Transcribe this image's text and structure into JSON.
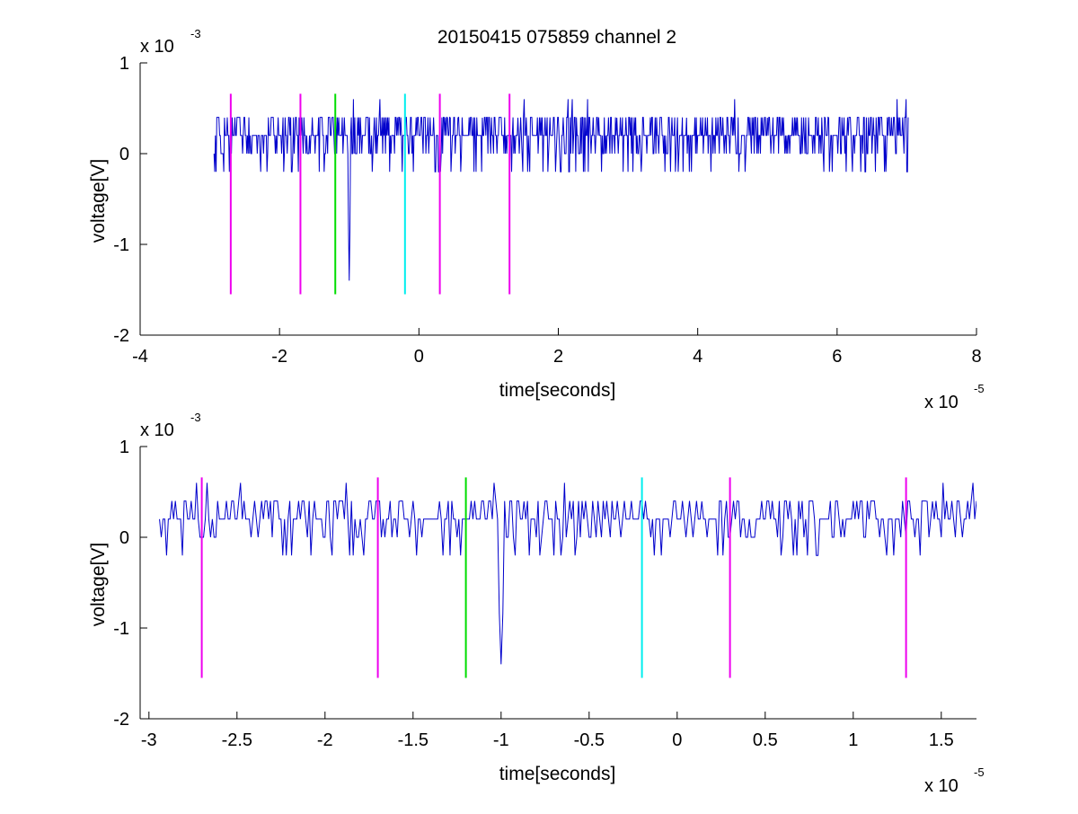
{
  "title": "20150415 075859 channel 2",
  "colors": {
    "signal": "#0000cc",
    "magenta": "#ee00ee",
    "green": "#00dd00",
    "cyan": "#00eeee"
  },
  "chart_data": [
    {
      "type": "line",
      "panel": "top",
      "xlabel": "time[seconds]",
      "ylabel": "voltage[V]",
      "x_exponent": "x 10",
      "x_exponent_power": "-5",
      "y_exponent": "x 10",
      "y_exponent_power": "-3",
      "xlim": [
        -4e-05,
        8e-05
      ],
      "ylim": [
        -0.002,
        0.001
      ],
      "xticks": [
        -4e-05,
        -2e-05,
        0,
        2e-05,
        4e-05,
        6e-05,
        8e-05
      ],
      "xtick_labels": [
        "-4",
        "-2",
        "0",
        "2",
        "4",
        "6",
        "8"
      ],
      "yticks": [
        -0.002,
        -0.001,
        0,
        0.001
      ],
      "ytick_labels": [
        "-2",
        "-1",
        "0",
        "1"
      ],
      "grid": false,
      "series": [
        {
          "color": "#0000cc",
          "x_range": [
            -2.94e-05,
            7.02e-05
          ],
          "baseline": 0.0002,
          "noise_levels": [
            -0.0002,
            0,
            0.0002,
            0.0004,
            0.0006
          ],
          "spikes": [
            {
              "x": -1e-05,
              "y": -0.0014
            }
          ]
        }
      ],
      "markers": [
        {
          "x": -2.7e-05,
          "color": "#ee00ee",
          "y_range": [
            -0.00155,
            0.00066
          ]
        },
        {
          "x": -1.7e-05,
          "color": "#ee00ee",
          "y_range": [
            -0.00155,
            0.00066
          ]
        },
        {
          "x": -1.2e-05,
          "color": "#00dd00",
          "y_range": [
            -0.00155,
            0.00066
          ]
        },
        {
          "x": -2e-06,
          "color": "#00eeee",
          "y_range": [
            -0.00155,
            0.00066
          ]
        },
        {
          "x": 3e-06,
          "color": "#ee00ee",
          "y_range": [
            -0.00155,
            0.00066
          ]
        },
        {
          "x": 1.3e-05,
          "color": "#ee00ee",
          "y_range": [
            -0.00155,
            0.00066
          ]
        }
      ]
    },
    {
      "type": "line",
      "panel": "bottom",
      "xlabel": "time[seconds]",
      "ylabel": "voltage[V]",
      "x_exponent": "x 10",
      "x_exponent_power": "-5",
      "y_exponent": "x 10",
      "y_exponent_power": "-3",
      "xlim": [
        -3.05e-05,
        1.7e-05
      ],
      "ylim": [
        -0.002,
        0.001
      ],
      "xticks": [
        -3e-05,
        -2.5e-05,
        -2e-05,
        -1.5e-05,
        -1e-05,
        -5e-06,
        0,
        5e-06,
        1e-05,
        1.5e-05
      ],
      "xtick_labels": [
        "-3",
        "-2.5",
        "-2",
        "-1.5",
        "-1",
        "-0.5",
        "0",
        "0.5",
        "1",
        "1.5"
      ],
      "yticks": [
        -0.002,
        -0.001,
        0,
        0.001
      ],
      "ytick_labels": [
        "-2",
        "-1",
        "0",
        "1"
      ],
      "grid": false,
      "series": [
        {
          "color": "#0000cc",
          "x_range": [
            -2.94e-05,
            1.7e-05
          ],
          "baseline": 0.0002,
          "noise_levels": [
            -0.0002,
            0,
            0.0002,
            0.0004,
            0.0006
          ],
          "spikes": [
            {
              "x": -1e-05,
              "y": -0.0014
            }
          ]
        }
      ],
      "markers": [
        {
          "x": -2.7e-05,
          "color": "#ee00ee",
          "y_range": [
            -0.00155,
            0.00066
          ]
        },
        {
          "x": -1.7e-05,
          "color": "#ee00ee",
          "y_range": [
            -0.00155,
            0.00066
          ]
        },
        {
          "x": -1.2e-05,
          "color": "#00dd00",
          "y_range": [
            -0.00155,
            0.00066
          ]
        },
        {
          "x": -2e-06,
          "color": "#00eeee",
          "y_range": [
            -0.00155,
            0.00066
          ]
        },
        {
          "x": 3e-06,
          "color": "#ee00ee",
          "y_range": [
            -0.00155,
            0.00066
          ]
        },
        {
          "x": 1.3e-05,
          "color": "#ee00ee",
          "y_range": [
            -0.00155,
            0.00066
          ]
        }
      ]
    }
  ]
}
